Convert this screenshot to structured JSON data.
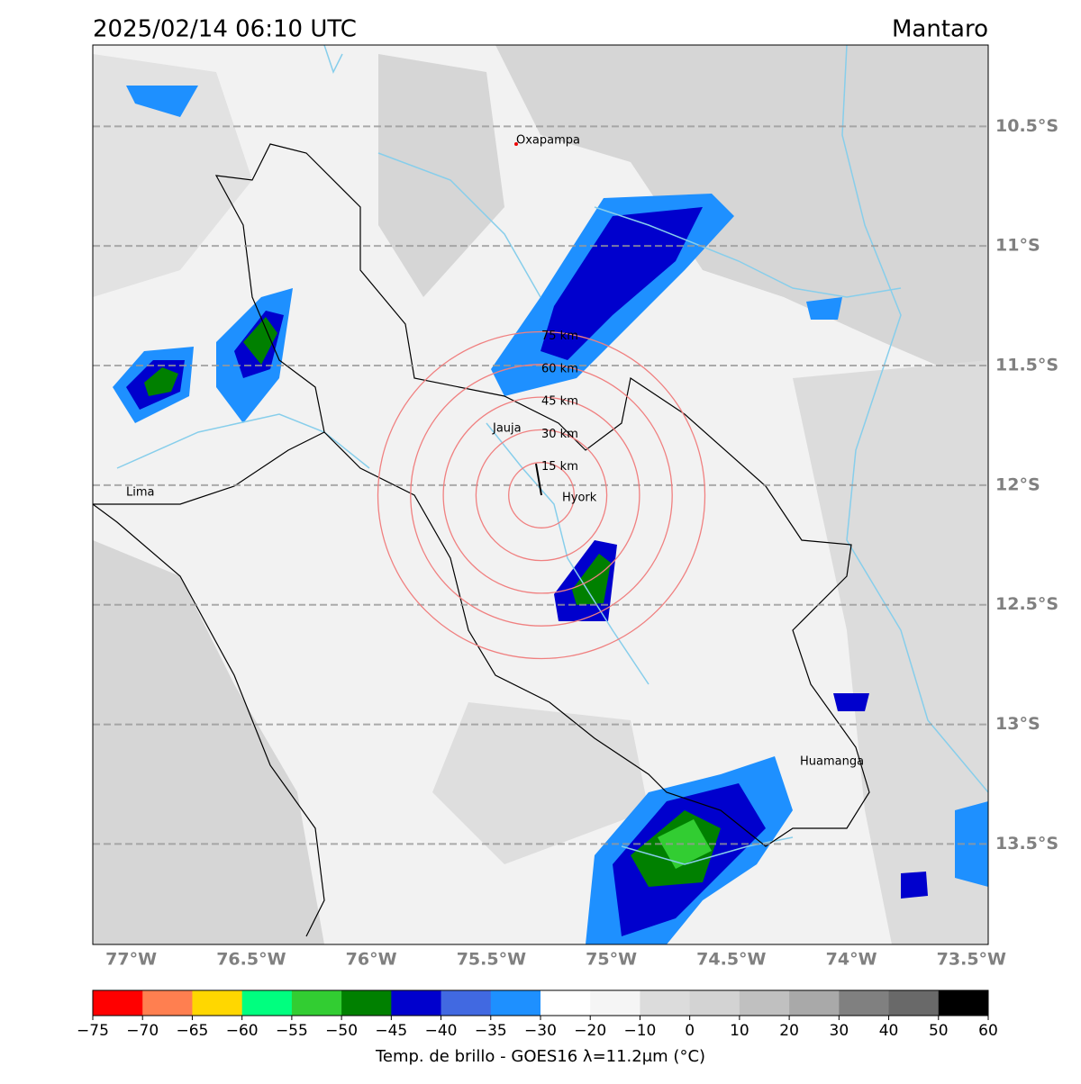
{
  "header": {
    "title": "2025/02/14 06:10 UTC",
    "region": "Mantaro"
  },
  "map": {
    "lonlim": [
      -77.16,
      -73.43
    ],
    "latlim": [
      -10.16,
      -13.92
    ],
    "lat_ticks": [
      {
        "value": -10.5,
        "label": "10.5°S"
      },
      {
        "value": -11,
        "label": "11°S"
      },
      {
        "value": -11.5,
        "label": "11.5°S"
      },
      {
        "value": -12,
        "label": "12°S"
      },
      {
        "value": -12.5,
        "label": "12.5°S"
      },
      {
        "value": -13,
        "label": "13°S"
      },
      {
        "value": -13.5,
        "label": "13.5°S"
      }
    ],
    "lon_ticks": [
      {
        "value": -77,
        "label": "77°W"
      },
      {
        "value": -76.5,
        "label": "76.5°W"
      },
      {
        "value": -76,
        "label": "76°W"
      },
      {
        "value": -75.5,
        "label": "75.5°W"
      },
      {
        "value": -75,
        "label": "75°W"
      },
      {
        "value": -74.5,
        "label": "74.5°W"
      },
      {
        "value": -74,
        "label": "74°W"
      },
      {
        "value": -73.5,
        "label": "73.5°W"
      }
    ],
    "places": [
      "Oxapampa",
      "Jauja",
      "Hyork",
      "Lima",
      "Huamanga"
    ],
    "rings": [
      "15 km",
      "30 km",
      "45 km",
      "60 km",
      "75 km"
    ]
  },
  "colorbar": {
    "colors": [
      "#ff0000",
      "#ff7f50",
      "#ffd700",
      "#00ff7f",
      "#32cd32",
      "#008000",
      "#0000cd",
      "#4169e1",
      "#1e90ff",
      "#ffffff",
      "#f5f5f5",
      "#dcdcdc",
      "#d3d3d3",
      "#c0c0c0",
      "#a9a9a9",
      "#808080",
      "#696969",
      "#000000"
    ],
    "ticks": [
      {
        "value": -75,
        "label": "−75"
      },
      {
        "value": -70,
        "label": "−70"
      },
      {
        "value": -65,
        "label": "−65"
      },
      {
        "value": -60,
        "label": "−60"
      },
      {
        "value": -55,
        "label": "−55"
      },
      {
        "value": -50,
        "label": "−50"
      },
      {
        "value": -45,
        "label": "−45"
      },
      {
        "value": -40,
        "label": "−40"
      },
      {
        "value": -35,
        "label": "−35"
      },
      {
        "value": -30,
        "label": "−30"
      },
      {
        "value": -20,
        "label": "−20"
      },
      {
        "value": -10,
        "label": "−10"
      },
      0,
      10,
      20,
      30,
      40,
      50,
      60
    ],
    "label": "Temp. de brillo - GOES16 λ=11.2μm (°C)"
  }
}
